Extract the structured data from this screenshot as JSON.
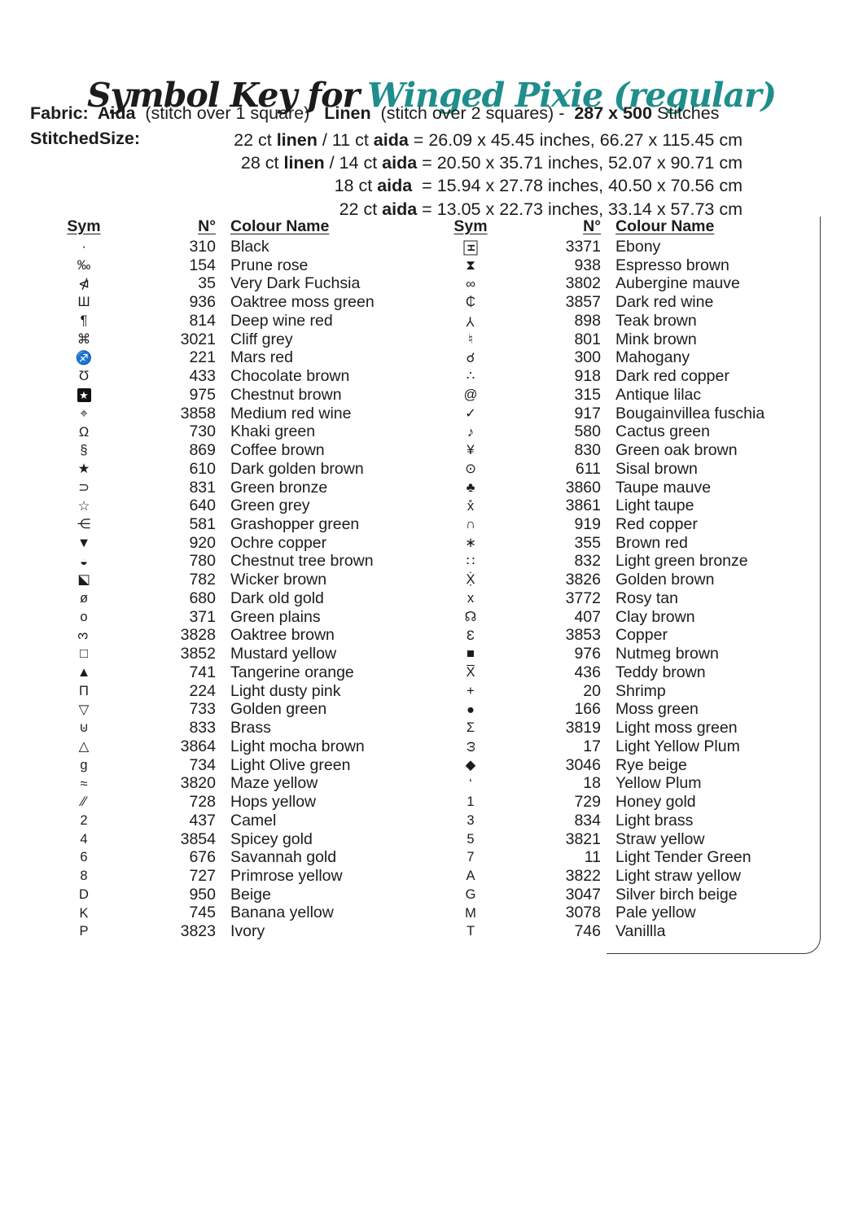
{
  "colors": {
    "accent_teal": "#1f8e8c",
    "text": "#1c1c1c",
    "border": "#3c3c3c"
  },
  "title": {
    "prefix": "Symbol Key for",
    "name": "Winged Pixie (regular)"
  },
  "fabric_line": {
    "segments": [
      {
        "t": "Fabric:  Aida  ",
        "b": true
      },
      {
        "t": "(stitch over 1 square)   ",
        "b": false
      },
      {
        "t": "Linen  ",
        "b": true
      },
      {
        "t": "(stitch over 2 squares) -  ",
        "b": false
      },
      {
        "t": "287 x 500",
        "b": true
      },
      {
        "t": " Stitches",
        "b": false
      }
    ]
  },
  "stitched_size": {
    "label": "StitchedSize:",
    "lines": [
      [
        {
          "t": "22 ct ",
          "b": false
        },
        {
          "t": "linen",
          "b": true
        },
        {
          "t": " / 11 ct ",
          "b": false
        },
        {
          "t": "aida",
          "b": true
        },
        {
          "t": " = 26.09 x 45.45 inches, 66.27 x 115.45 cm",
          "b": false
        }
      ],
      [
        {
          "t": "28 ct ",
          "b": false
        },
        {
          "t": "linen",
          "b": true
        },
        {
          "t": " / 14 ct ",
          "b": false
        },
        {
          "t": "aida",
          "b": true
        },
        {
          "t": " = 20.50 x 35.71 inches, 52.07 x 90.71 cm",
          "b": false
        }
      ],
      [
        {
          "t": "18 ct ",
          "b": false
        },
        {
          "t": "aida",
          "b": true
        },
        {
          "t": "  = 15.94 x 27.78 inches, 40.50 x 70.56 cm",
          "b": false
        }
      ],
      [
        {
          "t": "22 ct ",
          "b": false
        },
        {
          "t": "aida",
          "b": true
        },
        {
          "t": " = 13.05 x 22.73 inches, 33.14 x 57.73 cm",
          "b": false
        }
      ]
    ]
  },
  "table": {
    "headers": {
      "sym": "Sym",
      "num": "N°",
      "name": "Colour Name"
    },
    "columns": [
      {
        "rows": [
          {
            "sym": "·",
            "num": "310",
            "name": "Black"
          },
          {
            "sym": "‰",
            "num": "154",
            "name": "Prune rose"
          },
          {
            "sym": "⋪",
            "num": "35",
            "name": "Very Dark Fuchsia"
          },
          {
            "sym": "Ш",
            "num": "936",
            "name": "Oaktree moss green"
          },
          {
            "sym": "¶",
            "num": "814",
            "name": "Deep wine red"
          },
          {
            "sym": "⌘",
            "num": "3021",
            "name": "Cliff grey"
          },
          {
            "sym": "♐",
            "num": "221",
            "name": "Mars red"
          },
          {
            "sym": "Ʊ",
            "num": "433",
            "name": "Chocolate brown"
          },
          {
            "sym": "★",
            "boxed": true,
            "num": "975",
            "name": "Chestnut brown"
          },
          {
            "sym": "⌖",
            "num": "3858",
            "name": "Medium red wine"
          },
          {
            "sym": "Ω",
            "num": "730",
            "name": "Khaki green"
          },
          {
            "sym": "§",
            "num": "869",
            "name": "Coffee brown"
          },
          {
            "sym": "★",
            "num": "610",
            "name": "Dark golden brown"
          },
          {
            "sym": "⊃",
            "num": "831",
            "name": "Green bronze"
          },
          {
            "sym": "☆",
            "num": "640",
            "name": "Green grey"
          },
          {
            "sym": "⋲",
            "num": "581",
            "name": "Grashopper green"
          },
          {
            "sym": "▼",
            "num": "920",
            "name": "Ochre copper"
          },
          {
            "sym": "◒",
            "num": "780",
            "name": "Chestnut tree brown"
          },
          {
            "sym": "⬕",
            "num": "782",
            "name": "Wicker brown"
          },
          {
            "sym": "ø",
            "num": "680",
            "name": "Dark old gold"
          },
          {
            "sym": "o",
            "num": "371",
            "name": "Green plains"
          },
          {
            "sym": "3",
            "rot": -90,
            "num": "3828",
            "name": "Oaktree brown"
          },
          {
            "sym": "□",
            "num": "3852",
            "name": "Mustard yellow"
          },
          {
            "sym": "▲",
            "num": "741",
            "name": "Tangerine orange"
          },
          {
            "sym": "Π",
            "num": "224",
            "name": "Light dusty pink"
          },
          {
            "sym": "▽",
            "num": "733",
            "name": "Golden green"
          },
          {
            "sym": "⊍",
            "num": "833",
            "name": "Brass"
          },
          {
            "sym": "△",
            "num": "3864",
            "name": "Light mocha brown"
          },
          {
            "sym": "g",
            "num": "734",
            "name": "Light Olive green"
          },
          {
            "sym": "≈",
            "num": "3820",
            "name": "Maze yellow"
          },
          {
            "sym": "⁄⁄",
            "num": "728",
            "name": "Hops yellow"
          },
          {
            "sym": "2",
            "num": "437",
            "name": "Camel"
          },
          {
            "sym": "4",
            "num": "3854",
            "name": "Spicey gold"
          },
          {
            "sym": "6",
            "num": "676",
            "name": "Savannah gold"
          },
          {
            "sym": "8",
            "num": "727",
            "name": "Primrose yellow"
          },
          {
            "sym": "D",
            "num": "950",
            "name": "Beige"
          },
          {
            "sym": "K",
            "num": "745",
            "name": "Banana yellow"
          },
          {
            "sym": "P",
            "num": "3823",
            "name": "Ivory"
          }
        ]
      },
      {
        "rows": [
          {
            "sym": "H",
            "rot": 90,
            "frame": true,
            "num": "3371",
            "name": "Ebony"
          },
          {
            "sym": "⧗",
            "num": "938",
            "name": "Espresso brown"
          },
          {
            "sym": "∞",
            "num": "3802",
            "name": "Aubergine mauve"
          },
          {
            "sym": "₵",
            "num": "3857",
            "name": "Dark red wine"
          },
          {
            "sym": "Y",
            "rot": 180,
            "num": "898",
            "name": "Teak brown"
          },
          {
            "sym": "♮",
            "num": "801",
            "name": "Mink brown"
          },
          {
            "sym": "☌",
            "num": "300",
            "name": "Mahogany"
          },
          {
            "sym": "∴",
            "num": "918",
            "name": "Dark red copper"
          },
          {
            "sym": "@",
            "num": "315",
            "name": "Antique lilac"
          },
          {
            "sym": "✓",
            "num": "917",
            "name": "Bougainvillea fuschia"
          },
          {
            "sym": "♪",
            "num": "580",
            "name": "Cactus green"
          },
          {
            "sym": "¥",
            "num": "830",
            "name": "Green oak brown"
          },
          {
            "sym": "⊙",
            "num": "611",
            "name": "Sisal brown"
          },
          {
            "sym": "♣",
            "num": "3860",
            "name": "Taupe mauve"
          },
          {
            "sym": "x̊",
            "num": "3861",
            "name": "Light taupe"
          },
          {
            "sym": "∩",
            "num": "919",
            "name": "Red copper"
          },
          {
            "sym": "∗",
            "num": "355",
            "name": "Brown red"
          },
          {
            "sym": "∷",
            "num": "832",
            "name": "Light green bronze"
          },
          {
            "sym": "Ẋ̣",
            "num": "3826",
            "name": "Golden brown"
          },
          {
            "sym": "x",
            "num": "3772",
            "name": "Rosy tan"
          },
          {
            "sym": "☊",
            "num": "407",
            "name": "Clay brown"
          },
          {
            "sym": "Ɛ",
            "num": "3853",
            "name": "Copper"
          },
          {
            "sym": "■",
            "num": "976",
            "name": "Nutmeg brown"
          },
          {
            "sym": "X̅",
            "num": "436",
            "name": "Teddy brown"
          },
          {
            "sym": "+",
            "num": "20",
            "name": "Shrimp"
          },
          {
            "sym": "●",
            "num": "166",
            "name": "Moss green"
          },
          {
            "sym": "Σ",
            "num": "3819",
            "name": "Light moss green"
          },
          {
            "sym": "ω",
            "rot": -90,
            "num": "17",
            "name": "Light Yellow Plum"
          },
          {
            "sym": "◆",
            "num": "3046",
            "name": "Rye beige"
          },
          {
            "sym": "‘",
            "num": "18",
            "name": "Yellow Plum"
          },
          {
            "sym": "1",
            "num": "729",
            "name": "Honey gold"
          },
          {
            "sym": "3",
            "num": "834",
            "name": "Light brass"
          },
          {
            "sym": "5",
            "num": "3821",
            "name": "Straw yellow"
          },
          {
            "sym": "7",
            "num": "11",
            "name": "Light Tender Green"
          },
          {
            "sym": "A",
            "num": "3822",
            "name": "Light straw yellow"
          },
          {
            "sym": "G",
            "num": "3047",
            "name": "Silver birch beige"
          },
          {
            "sym": "M",
            "num": "3078",
            "name": "Pale yellow"
          },
          {
            "sym": "T",
            "num": "746",
            "name": "Vanillla"
          }
        ]
      }
    ]
  }
}
